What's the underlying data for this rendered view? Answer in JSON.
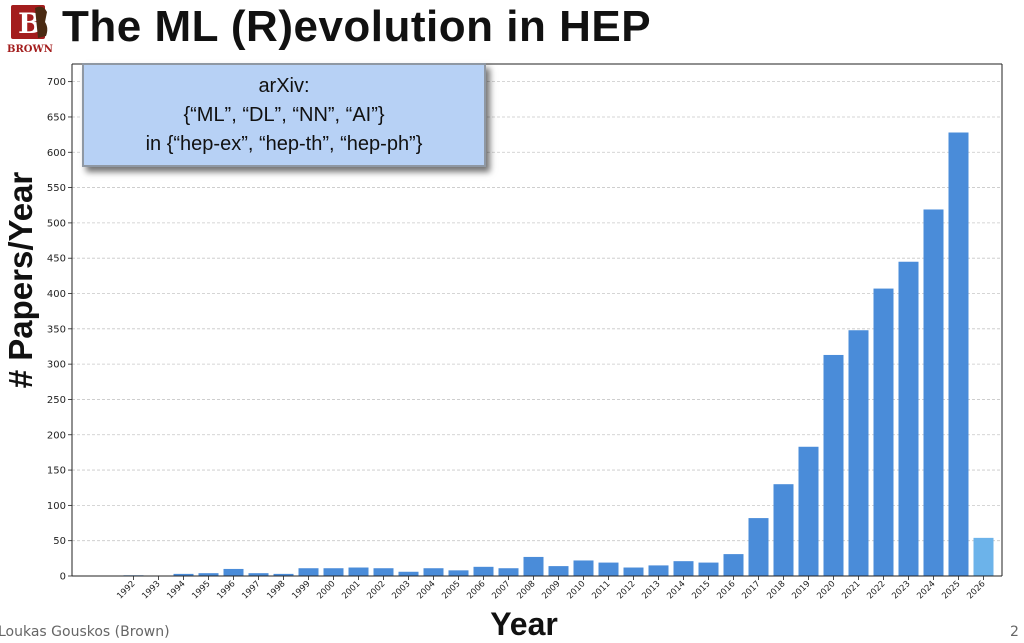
{
  "slide": {
    "title": "The ML (R)evolution in HEP",
    "logo_text": "BROWN",
    "logo_letter": "B",
    "author": "Loukas Gouskos (Brown)",
    "page_number": "2",
    "colors": {
      "bar": "#4a8cd9",
      "bar_partial": "#6cb3ea",
      "info_box": "#b7d1f5",
      "logo": "#a31d1d"
    }
  },
  "info_box": {
    "line1": "arXiv:",
    "line2": "{“ML”, “DL”, “NN”, “AI”}",
    "line3": "in {“hep-ex”, “hep-th”, “hep-ph”}"
  },
  "chart_data": {
    "type": "bar",
    "xlabel": "Year",
    "ylabel": "# Papers/Year",
    "ylim": [
      0,
      725
    ],
    "yticks": [
      0,
      50,
      100,
      150,
      200,
      250,
      300,
      350,
      400,
      450,
      500,
      550,
      600,
      650,
      700
    ],
    "grid": "horizontal dashed",
    "categories": [
      "1992",
      "1993",
      "1994",
      "1995",
      "1996",
      "1997",
      "1998",
      "1999",
      "2000",
      "2001",
      "2002",
      "2003",
      "2004",
      "2005",
      "2006",
      "2007",
      "2008",
      "2009",
      "2010",
      "2011",
      "2012",
      "2013",
      "2014",
      "2015",
      "2016",
      "2017",
      "2018",
      "2019",
      "2020",
      "2021",
      "2022",
      "2023",
      "2024",
      "2025",
      "2026"
    ],
    "values": [
      1,
      0,
      3,
      4,
      10,
      4,
      3,
      11,
      11,
      12,
      11,
      6,
      11,
      8,
      13,
      11,
      27,
      14,
      22,
      19,
      12,
      15,
      21,
      19,
      31,
      82,
      130,
      183,
      313,
      348,
      407,
      445,
      519,
      628,
      54
    ]
  }
}
